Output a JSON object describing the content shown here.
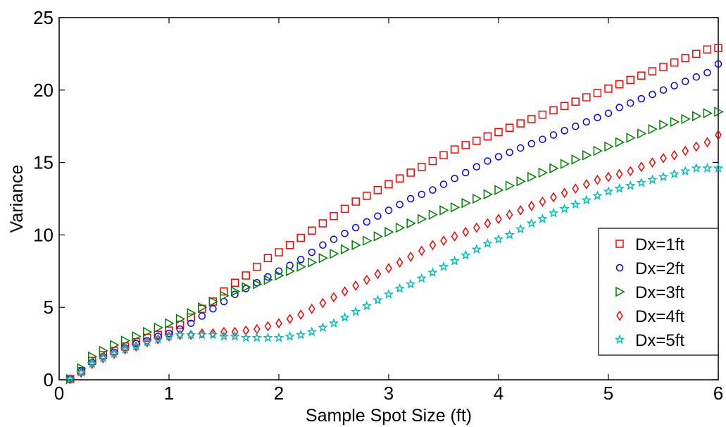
{
  "chart_data": {
    "type": "scatter",
    "title": "",
    "xlabel": "Sample Spot Size (ft)",
    "ylabel": "Variance",
    "xlim": [
      0,
      6
    ],
    "ylim": [
      0,
      25
    ],
    "xticks": [
      "0",
      "1",
      "2",
      "3",
      "4",
      "5",
      "6"
    ],
    "yticks": [
      "0",
      "5",
      "10",
      "15",
      "20",
      "25"
    ],
    "grid": false,
    "legend_position": "bottom-right",
    "series": [
      {
        "name": "Dx=1ft",
        "marker": "square",
        "color": "#ff0000",
        "x": [
          0.1,
          0.2,
          0.3,
          0.4,
          0.5,
          0.6,
          0.7,
          0.8,
          0.9,
          1.0,
          1.1,
          1.2,
          1.3,
          1.4,
          1.5,
          1.6,
          1.7,
          1.8,
          1.9,
          2.0,
          2.1,
          2.2,
          2.3,
          2.4,
          2.5,
          2.6,
          2.7,
          2.8,
          2.9,
          3.0,
          3.1,
          3.2,
          3.3,
          3.4,
          3.5,
          3.6,
          3.7,
          3.8,
          3.9,
          4.0,
          4.1,
          4.2,
          4.3,
          4.4,
          4.5,
          4.6,
          4.7,
          4.8,
          4.9,
          5.0,
          5.1,
          5.2,
          5.3,
          5.4,
          5.5,
          5.6,
          5.7,
          5.8,
          5.9,
          6.0
        ],
        "y": [
          0.05,
          0.6,
          1.3,
          1.7,
          2.0,
          2.3,
          2.6,
          2.9,
          3.1,
          3.4,
          3.8,
          4.3,
          4.9,
          5.4,
          6.1,
          6.7,
          7.2,
          7.8,
          8.4,
          8.8,
          9.3,
          9.8,
          10.3,
          10.8,
          11.3,
          11.8,
          12.3,
          12.7,
          13.1,
          13.5,
          13.9,
          14.3,
          14.7,
          15.1,
          15.5,
          15.9,
          16.2,
          16.5,
          16.8,
          17.1,
          17.4,
          17.7,
          18.0,
          18.3,
          18.6,
          18.9,
          19.2,
          19.5,
          19.8,
          20.1,
          20.4,
          20.7,
          21.0,
          21.3,
          21.6,
          21.9,
          22.2,
          22.5,
          22.8,
          22.9
        ]
      },
      {
        "name": "Dx=2ft",
        "marker": "circle",
        "color": "#0000ff",
        "x": [
          0.1,
          0.2,
          0.3,
          0.4,
          0.5,
          0.6,
          0.7,
          0.8,
          0.9,
          1.0,
          1.1,
          1.2,
          1.3,
          1.4,
          1.5,
          1.6,
          1.7,
          1.8,
          1.9,
          2.0,
          2.1,
          2.2,
          2.3,
          2.4,
          2.5,
          2.6,
          2.7,
          2.8,
          2.9,
          3.0,
          3.1,
          3.2,
          3.3,
          3.4,
          3.5,
          3.6,
          3.7,
          3.8,
          3.9,
          4.0,
          4.1,
          4.2,
          4.3,
          4.4,
          4.5,
          4.6,
          4.7,
          4.8,
          4.9,
          5.0,
          5.1,
          5.2,
          5.3,
          5.4,
          5.5,
          5.6,
          5.7,
          5.8,
          5.9,
          6.0
        ],
        "y": [
          0.05,
          0.6,
          1.2,
          1.6,
          1.9,
          2.2,
          2.5,
          2.7,
          3.0,
          3.2,
          3.5,
          3.9,
          4.4,
          4.9,
          5.4,
          5.9,
          6.3,
          6.7,
          7.1,
          7.5,
          7.9,
          8.3,
          8.8,
          9.3,
          9.7,
          10.1,
          10.5,
          10.9,
          11.3,
          11.7,
          12.1,
          12.5,
          12.8,
          13.1,
          13.5,
          13.9,
          14.3,
          14.7,
          15.1,
          15.4,
          15.7,
          16.0,
          16.3,
          16.6,
          16.9,
          17.2,
          17.5,
          17.8,
          18.1,
          18.4,
          18.8,
          19.1,
          19.4,
          19.7,
          20.0,
          20.3,
          20.6,
          20.9,
          21.2,
          21.8
        ]
      },
      {
        "name": "Dx=3ft",
        "marker": "triangle-right",
        "color": "#008000",
        "x": [
          0.1,
          0.2,
          0.3,
          0.4,
          0.5,
          0.6,
          0.7,
          0.8,
          0.9,
          1.0,
          1.1,
          1.2,
          1.3,
          1.4,
          1.5,
          1.6,
          1.7,
          1.8,
          1.9,
          2.0,
          2.1,
          2.2,
          2.3,
          2.4,
          2.5,
          2.6,
          2.7,
          2.8,
          2.9,
          3.0,
          3.1,
          3.2,
          3.3,
          3.4,
          3.5,
          3.6,
          3.7,
          3.8,
          3.9,
          4.0,
          4.1,
          4.2,
          4.3,
          4.4,
          4.5,
          4.6,
          4.7,
          4.8,
          4.9,
          5.0,
          5.1,
          5.2,
          5.3,
          5.4,
          5.5,
          5.6,
          5.7,
          5.8,
          5.9,
          6.0
        ],
        "y": [
          0.05,
          0.8,
          1.6,
          2.0,
          2.4,
          2.7,
          3.0,
          3.3,
          3.6,
          3.9,
          4.2,
          4.6,
          5.0,
          5.4,
          5.8,
          6.1,
          6.4,
          6.6,
          6.9,
          7.2,
          7.5,
          7.8,
          8.1,
          8.4,
          8.7,
          9.0,
          9.3,
          9.6,
          9.9,
          10.2,
          10.5,
          10.8,
          11.1,
          11.4,
          11.7,
          11.9,
          12.2,
          12.5,
          12.8,
          13.1,
          13.4,
          13.7,
          14.0,
          14.3,
          14.6,
          14.9,
          15.2,
          15.5,
          15.8,
          16.1,
          16.4,
          16.7,
          17.0,
          17.3,
          17.6,
          17.8,
          18.0,
          18.2,
          18.4,
          18.5
        ]
      },
      {
        "name": "Dx=4ft",
        "marker": "diamond",
        "color": "#ff0000",
        "x": [
          0.1,
          0.2,
          0.3,
          0.4,
          0.5,
          0.6,
          0.7,
          0.8,
          0.9,
          1.0,
          1.1,
          1.2,
          1.3,
          1.4,
          1.5,
          1.6,
          1.7,
          1.8,
          1.9,
          2.0,
          2.1,
          2.2,
          2.3,
          2.4,
          2.5,
          2.6,
          2.7,
          2.8,
          2.9,
          3.0,
          3.1,
          3.2,
          3.3,
          3.4,
          3.5,
          3.6,
          3.7,
          3.8,
          3.9,
          4.0,
          4.1,
          4.2,
          4.3,
          4.4,
          4.5,
          4.6,
          4.7,
          4.8,
          4.9,
          5.0,
          5.1,
          5.2,
          5.3,
          5.4,
          5.5,
          5.6,
          5.7,
          5.8,
          5.9,
          6.0
        ],
        "y": [
          0.05,
          0.5,
          1.1,
          1.5,
          1.8,
          2.1,
          2.3,
          2.6,
          2.8,
          3.0,
          3.1,
          3.1,
          3.2,
          3.2,
          3.3,
          3.3,
          3.4,
          3.5,
          3.7,
          3.9,
          4.2,
          4.5,
          4.9,
          5.3,
          5.7,
          6.1,
          6.5,
          6.9,
          7.3,
          7.7,
          8.1,
          8.5,
          8.9,
          9.3,
          9.6,
          9.9,
          10.2,
          10.5,
          10.8,
          11.1,
          11.4,
          11.7,
          12.0,
          12.3,
          12.6,
          12.9,
          13.2,
          13.5,
          13.8,
          14.0,
          14.2,
          14.4,
          14.7,
          15.0,
          15.3,
          15.5,
          15.8,
          16.1,
          16.4,
          16.9
        ]
      },
      {
        "name": "Dx=5ft",
        "marker": "star",
        "color": "#00bfbf",
        "x": [
          0.1,
          0.2,
          0.3,
          0.4,
          0.5,
          0.6,
          0.7,
          0.8,
          0.9,
          1.0,
          1.1,
          1.2,
          1.3,
          1.4,
          1.5,
          1.6,
          1.7,
          1.8,
          1.9,
          2.0,
          2.1,
          2.2,
          2.3,
          2.4,
          2.5,
          2.6,
          2.7,
          2.8,
          2.9,
          3.0,
          3.1,
          3.2,
          3.3,
          3.4,
          3.5,
          3.6,
          3.7,
          3.8,
          3.9,
          4.0,
          4.1,
          4.2,
          4.3,
          4.4,
          4.5,
          4.6,
          4.7,
          4.8,
          4.9,
          5.0,
          5.1,
          5.2,
          5.3,
          5.4,
          5.5,
          5.6,
          5.7,
          5.8,
          5.9,
          6.0
        ],
        "y": [
          0.05,
          0.5,
          1.1,
          1.5,
          1.8,
          2.1,
          2.3,
          2.6,
          2.8,
          3.0,
          3.1,
          3.1,
          3.1,
          3.1,
          3.0,
          3.0,
          2.9,
          2.9,
          2.9,
          2.9,
          3.0,
          3.1,
          3.3,
          3.6,
          3.9,
          4.3,
          4.7,
          5.1,
          5.5,
          5.9,
          6.3,
          6.6,
          7.0,
          7.4,
          7.8,
          8.2,
          8.6,
          9.0,
          9.4,
          9.7,
          10.0,
          10.4,
          10.8,
          11.1,
          11.5,
          11.8,
          12.1,
          12.4,
          12.7,
          13.0,
          13.2,
          13.4,
          13.6,
          13.8,
          14.0,
          14.2,
          14.4,
          14.6,
          14.6,
          14.6
        ]
      }
    ]
  }
}
